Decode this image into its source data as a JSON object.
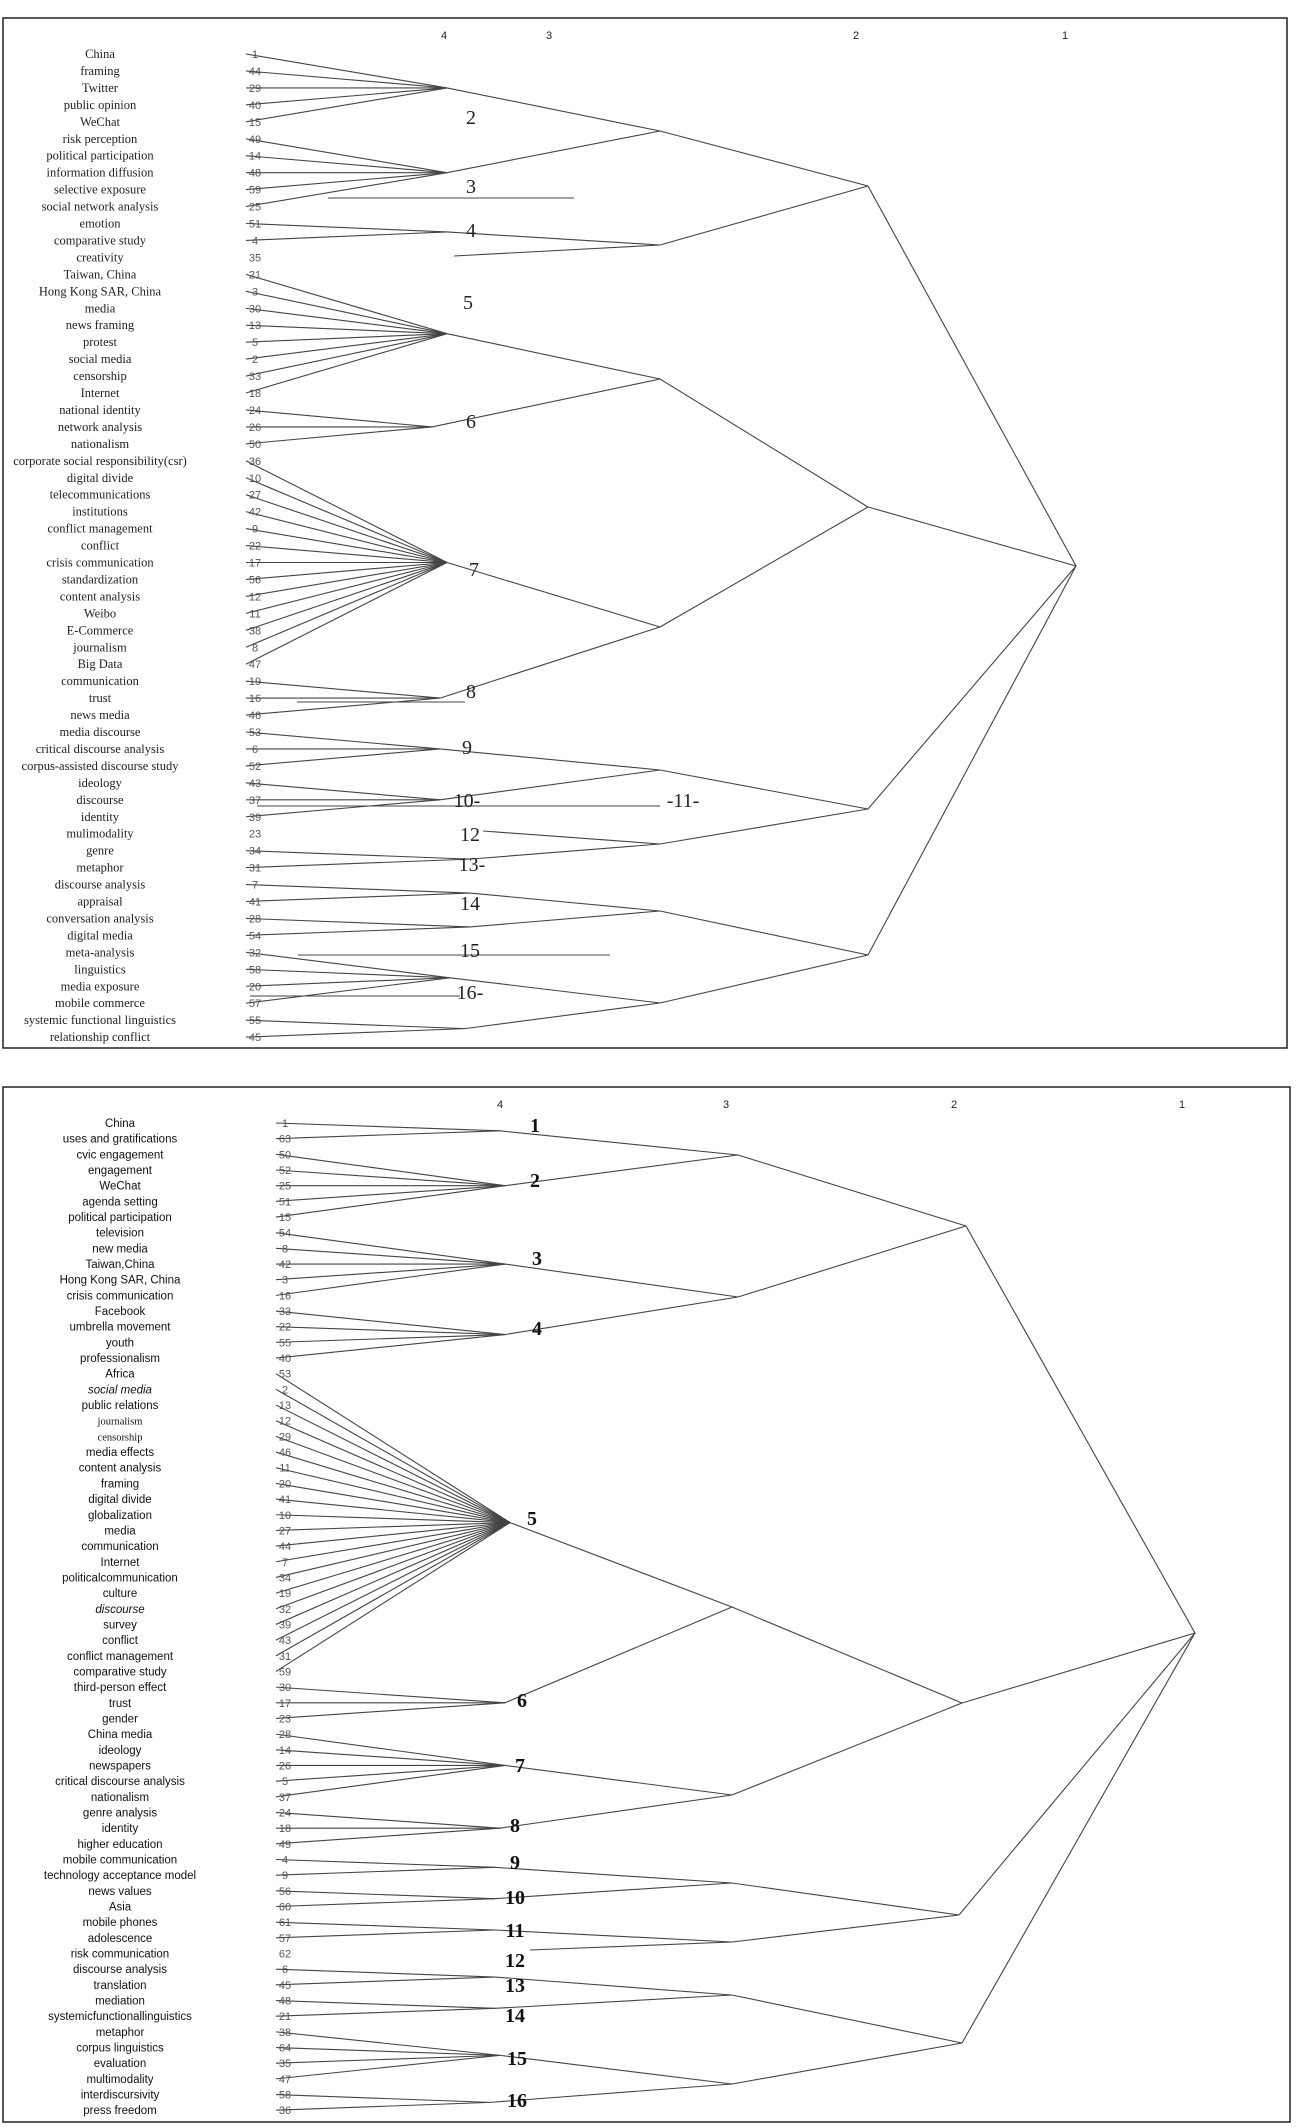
{
  "panels": [
    {
      "level_headers": [
        "4",
        "3",
        "2",
        "1"
      ],
      "keywords": [
        {
          "label": "China",
          "id": "1"
        },
        {
          "label": "framing",
          "id": "44"
        },
        {
          "label": "Twitter",
          "id": "29"
        },
        {
          "label": "public opinion",
          "id": "40"
        },
        {
          "label": "WeChat",
          "id": "15"
        },
        {
          "label": "risk perception",
          "id": "49"
        },
        {
          "label": "political participation",
          "id": "14"
        },
        {
          "label": "information diffusion",
          "id": "48"
        },
        {
          "label": "selective exposure",
          "id": "59"
        },
        {
          "label": "social network analysis",
          "id": "25"
        },
        {
          "label": "emotion",
          "id": "51"
        },
        {
          "label": "comparative study",
          "id": "4"
        },
        {
          "label": "creativity",
          "id": "35"
        },
        {
          "label": "Taiwan, China",
          "id": "21"
        },
        {
          "label": "Hong Kong SAR, China",
          "id": "3"
        },
        {
          "label": "media",
          "id": "30"
        },
        {
          "label": "news framing",
          "id": "13"
        },
        {
          "label": "protest",
          "id": "5"
        },
        {
          "label": "social media",
          "id": "2"
        },
        {
          "label": "censorship",
          "id": "33"
        },
        {
          "label": "Internet",
          "id": "18"
        },
        {
          "label": "national identity",
          "id": "24"
        },
        {
          "label": "network analysis",
          "id": "26"
        },
        {
          "label": "nationalism",
          "id": "50"
        },
        {
          "label": "corporate  social  responsibility(csr)",
          "id": "36"
        },
        {
          "label": "digital divide",
          "id": "10"
        },
        {
          "label": "telecommunications",
          "id": "27"
        },
        {
          "label": "institutions",
          "id": "42"
        },
        {
          "label": "conflict management",
          "id": "9"
        },
        {
          "label": "conflict",
          "id": "22"
        },
        {
          "label": "crisis communication",
          "id": "17"
        },
        {
          "label": "standardization",
          "id": "56"
        },
        {
          "label": "content analysis",
          "id": "12"
        },
        {
          "label": "Weibo",
          "id": "11"
        },
        {
          "label": "E-Commerce",
          "id": "38"
        },
        {
          "label": "journalism",
          "id": "8"
        },
        {
          "label": "Big Data",
          "id": "47"
        },
        {
          "label": "communication",
          "id": "19"
        },
        {
          "label": "trust",
          "id": "16"
        },
        {
          "label": "news media",
          "id": "46"
        },
        {
          "label": "media discourse",
          "id": "53"
        },
        {
          "label": "critical discourse analysis",
          "id": "6"
        },
        {
          "label": "corpus-assisted discourse study",
          "id": "52"
        },
        {
          "label": "ideology",
          "id": "43"
        },
        {
          "label": "discourse",
          "id": "37"
        },
        {
          "label": "identity",
          "id": "39"
        },
        {
          "label": "mulimodality",
          "id": "23"
        },
        {
          "label": "genre",
          "id": "34"
        },
        {
          "label": "metaphor",
          "id": "31"
        },
        {
          "label": "discourse analysis",
          "id": "7"
        },
        {
          "label": "appraisal",
          "id": "41"
        },
        {
          "label": "conversation analysis",
          "id": "28"
        },
        {
          "label": "digital media",
          "id": "54"
        },
        {
          "label": "meta-analysis",
          "id": "32"
        },
        {
          "label": "linguistics",
          "id": "58"
        },
        {
          "label": "media exposure",
          "id": "20"
        },
        {
          "label": "mobile commerce",
          "id": "57"
        },
        {
          "label": "systemic functional linguistics",
          "id": "55"
        },
        {
          "label": "relationship conflict",
          "id": "45"
        }
      ],
      "cluster_labels": [
        "2",
        "3",
        "4",
        "5",
        "6",
        "7",
        "8",
        "9",
        "10-",
        "-11-",
        "12",
        "13-",
        "14",
        "15",
        "16-"
      ]
    },
    {
      "level_headers": [
        "4",
        "3",
        "2",
        "1"
      ],
      "keywords": [
        {
          "label": "China",
          "id": "1"
        },
        {
          "label": "uses and gratifications",
          "id": "63"
        },
        {
          "label": "cvic engagement",
          "id": "50"
        },
        {
          "label": "engagement",
          "id": "52"
        },
        {
          "label": "WeChat",
          "id": "25"
        },
        {
          "label": "agenda setting",
          "id": "51"
        },
        {
          "label": "political participation",
          "id": "15"
        },
        {
          "label": "television",
          "id": "54"
        },
        {
          "label": "new media",
          "id": "8"
        },
        {
          "label": "Taiwan,China",
          "id": "42"
        },
        {
          "label": "Hong Kong SAR, China",
          "id": "3"
        },
        {
          "label": "crisis   communication",
          "id": "16"
        },
        {
          "label": "Facebook",
          "id": "33"
        },
        {
          "label": "umbrella movement",
          "id": "22"
        },
        {
          "label": "youth",
          "id": "55"
        },
        {
          "label": "professionalism",
          "id": "40"
        },
        {
          "label": "Africa",
          "id": "53"
        },
        {
          "label": "social media",
          "id": "2"
        },
        {
          "label": "public relations",
          "id": "13"
        },
        {
          "label": "journalism",
          "id": "12"
        },
        {
          "label": "censorship",
          "id": "29"
        },
        {
          "label": "media  effects",
          "id": "46"
        },
        {
          "label": "content analysis",
          "id": "11"
        },
        {
          "label": "framing",
          "id": "20"
        },
        {
          "label": "digital divide",
          "id": "41"
        },
        {
          "label": "globalization",
          "id": "10"
        },
        {
          "label": "media",
          "id": "27"
        },
        {
          "label": "communication",
          "id": "44"
        },
        {
          "label": "Internet",
          "id": "7"
        },
        {
          "label": "politicalcommunication",
          "id": "34"
        },
        {
          "label": "culture",
          "id": "19"
        },
        {
          "label": "discourse",
          "id": "32"
        },
        {
          "label": "survey",
          "id": "39"
        },
        {
          "label": "conflict",
          "id": "43"
        },
        {
          "label": "conflict management",
          "id": "31"
        },
        {
          "label": "comparative study",
          "id": "59"
        },
        {
          "label": "third-person effect",
          "id": "30"
        },
        {
          "label": "trust",
          "id": "17"
        },
        {
          "label": "gender",
          "id": "23"
        },
        {
          "label": "China media",
          "id": "28"
        },
        {
          "label": "ideology",
          "id": "14"
        },
        {
          "label": "newspapers",
          "id": "26"
        },
        {
          "label": "critical discourse analysis",
          "id": "5"
        },
        {
          "label": "nationalism",
          "id": "37"
        },
        {
          "label": "genre analysis",
          "id": "24"
        },
        {
          "label": "identity",
          "id": "18"
        },
        {
          "label": "higher education",
          "id": "49"
        },
        {
          "label": "mobile communication",
          "id": "4"
        },
        {
          "label": "technology  acceptance  model",
          "id": "9"
        },
        {
          "label": "news values",
          "id": "56"
        },
        {
          "label": "Asia",
          "id": "60"
        },
        {
          "label": "mobile phones",
          "id": "61"
        },
        {
          "label": "adolescence",
          "id": "57"
        },
        {
          "label": "risk communication",
          "id": "62"
        },
        {
          "label": "discourse analysis",
          "id": "6"
        },
        {
          "label": "translation",
          "id": "45"
        },
        {
          "label": "mediation",
          "id": "48"
        },
        {
          "label": "systemicfunctionallinguistics",
          "id": "21"
        },
        {
          "label": "metaphor",
          "id": "38"
        },
        {
          "label": "corpus  linguistics",
          "id": "64"
        },
        {
          "label": "evaluation",
          "id": "35"
        },
        {
          "label": "multimodality",
          "id": "47"
        },
        {
          "label": "interdiscursivity",
          "id": "58"
        },
        {
          "label": "press freedom",
          "id": "36"
        }
      ],
      "cluster_labels": [
        "1",
        "2",
        "3",
        "4",
        "5",
        "6",
        "7",
        "8",
        "9",
        "10",
        "11",
        "12",
        "13",
        "14",
        "15",
        "16"
      ]
    }
  ]
}
